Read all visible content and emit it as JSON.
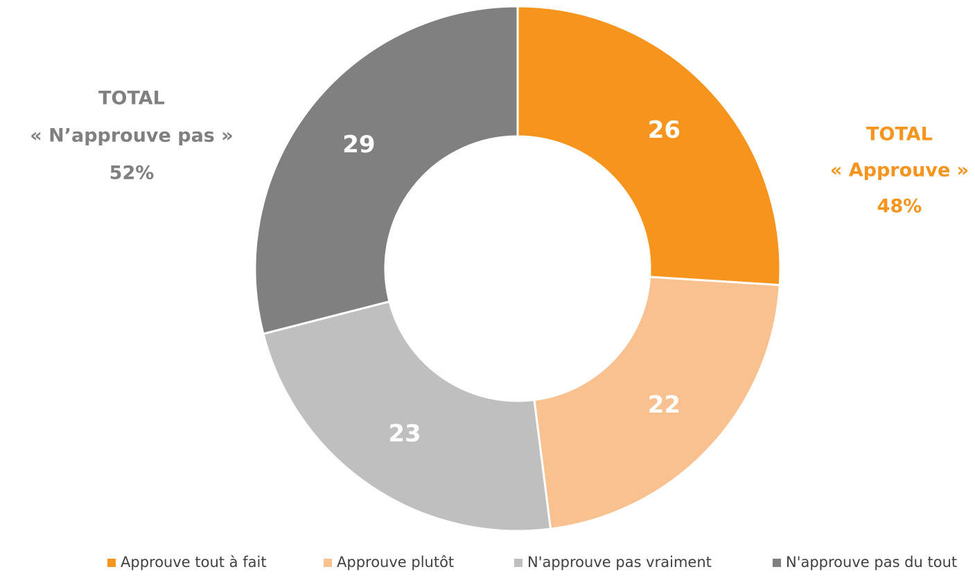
{
  "chart_data": {
    "type": "donut",
    "categories": [
      "Approuve tout à fait",
      "Approuve plutôt",
      "N'approuve pas vraiment",
      "N'approuve pas du tout"
    ],
    "values": [
      26,
      22,
      23,
      29
    ],
    "colors": [
      "#f7941d",
      "#f9c090",
      "#bfbfbf",
      "#808080"
    ],
    "annotations": [
      {
        "lines": [
          "TOTAL",
          "« N’approuve pas »",
          "52%"
        ],
        "color": "#808080"
      },
      {
        "lines": [
          "TOTAL",
          "« Approuve »",
          "48%"
        ],
        "color": "#f7941d"
      }
    ],
    "legend": "bottom"
  }
}
